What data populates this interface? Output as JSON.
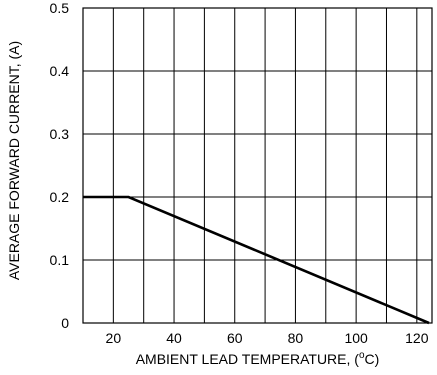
{
  "chart_data": {
    "type": "line",
    "title": "",
    "xlabel": "AMBIENT LEAD TEMPERATURE, (",
    "xlabel_superscript": "o",
    "xlabel_suffix": "C)",
    "ylabel": "AVERAGE FORWARD CURRENT, (A)",
    "xlim": [
      10,
      125
    ],
    "ylim": [
      0,
      0.5
    ],
    "x_ticks": [
      20,
      40,
      60,
      80,
      100,
      120
    ],
    "x_tick_labels": [
      "20",
      "40",
      "60",
      "80",
      "100",
      "120"
    ],
    "y_ticks": [
      0,
      0.1,
      0.2,
      0.3,
      0.4,
      0.5
    ],
    "y_tick_labels": [
      "0",
      "0.1",
      "0.2",
      "0.3",
      "0.4",
      "0.5"
    ],
    "x_grid": [
      10,
      20,
      30,
      40,
      50,
      60,
      70,
      80,
      90,
      100,
      110,
      120
    ],
    "grid": true,
    "legend": "none",
    "series": [
      {
        "x": [
          10,
          25,
          124
        ],
        "y": [
          0.2,
          0.2,
          0.0
        ],
        "color": "#000000"
      }
    ]
  }
}
